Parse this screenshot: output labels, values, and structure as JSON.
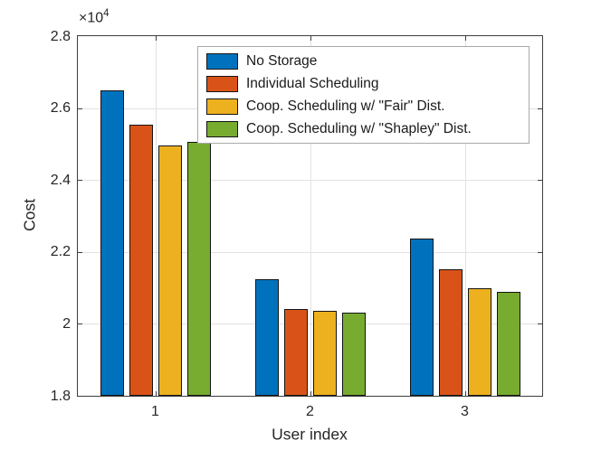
{
  "figure": {
    "background": "#ffffff",
    "axis_color": "#3d3d3d",
    "grid_color": "#e2e2e2",
    "tick_color": "#3d3d3d",
    "bar_edge_color": "#141414"
  },
  "chart_data": {
    "type": "bar",
    "title": "",
    "xlabel": "User index",
    "ylabel": "Cost",
    "y_exponent_label": "×10",
    "y_exponent": "4",
    "categories": [
      "1",
      "2",
      "3"
    ],
    "series": [
      {
        "name": "No Storage",
        "color": "#0072BD",
        "values": [
          26500,
          21250,
          22360
        ]
      },
      {
        "name": "Individual Scheduling",
        "color": "#D95319",
        "values": [
          25550,
          20400,
          21520
        ]
      },
      {
        "name": "Coop. Scheduling w/ \"Fair\" Dist.",
        "color": "#EDB120",
        "values": [
          24950,
          20350,
          21000
        ]
      },
      {
        "name": "Coop. Scheduling w/ \"Shapley\" Dist.",
        "color": "#77AC30",
        "values": [
          25050,
          20300,
          20900
        ]
      }
    ],
    "ylim": [
      18000,
      28000
    ],
    "ytick_step": 2000,
    "ytick_labels": [
      "1.8",
      "2",
      "2.2",
      "2.4",
      "2.6",
      "2.8"
    ],
    "grid": true,
    "legend_position": "inside-top, left of center-right"
  }
}
